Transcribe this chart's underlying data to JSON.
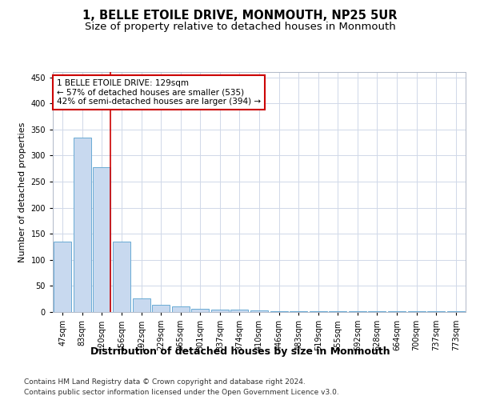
{
  "title": "1, BELLE ETOILE DRIVE, MONMOUTH, NP25 5UR",
  "subtitle": "Size of property relative to detached houses in Monmouth",
  "xlabel": "Distribution of detached houses by size in Monmouth",
  "ylabel": "Number of detached properties",
  "bar_labels": [
    "47sqm",
    "83sqm",
    "120sqm",
    "156sqm",
    "192sqm",
    "229sqm",
    "265sqm",
    "301sqm",
    "337sqm",
    "374sqm",
    "410sqm",
    "446sqm",
    "483sqm",
    "519sqm",
    "555sqm",
    "592sqm",
    "628sqm",
    "664sqm",
    "700sqm",
    "737sqm",
    "773sqm"
  ],
  "bar_values": [
    135,
    335,
    278,
    135,
    26,
    14,
    11,
    6,
    5,
    4,
    3,
    2,
    2,
    1,
    1,
    1,
    1,
    1,
    1,
    1,
    1
  ],
  "bar_color": "#c8d9ef",
  "bar_edge_color": "#6aaad4",
  "property_label": "1 BELLE ETOILE DRIVE: 129sqm",
  "annotation_line1": "← 57% of detached houses are smaller (535)",
  "annotation_line2": "42% of semi-detached houses are larger (394) →",
  "vline_color": "#cc0000",
  "vline_x_bin": 2,
  "annotation_box_color": "#ffffff",
  "annotation_box_edge": "#cc0000",
  "grid_color": "#d0d8e8",
  "background_color": "#ffffff",
  "footnote1": "Contains HM Land Registry data © Crown copyright and database right 2024.",
  "footnote2": "Contains public sector information licensed under the Open Government Licence v3.0.",
  "ylim": [
    0,
    460
  ],
  "title_fontsize": 10.5,
  "subtitle_fontsize": 9.5,
  "xlabel_fontsize": 9,
  "ylabel_fontsize": 8,
  "tick_fontsize": 7,
  "annotation_fontsize": 7.5,
  "footnote_fontsize": 6.5
}
